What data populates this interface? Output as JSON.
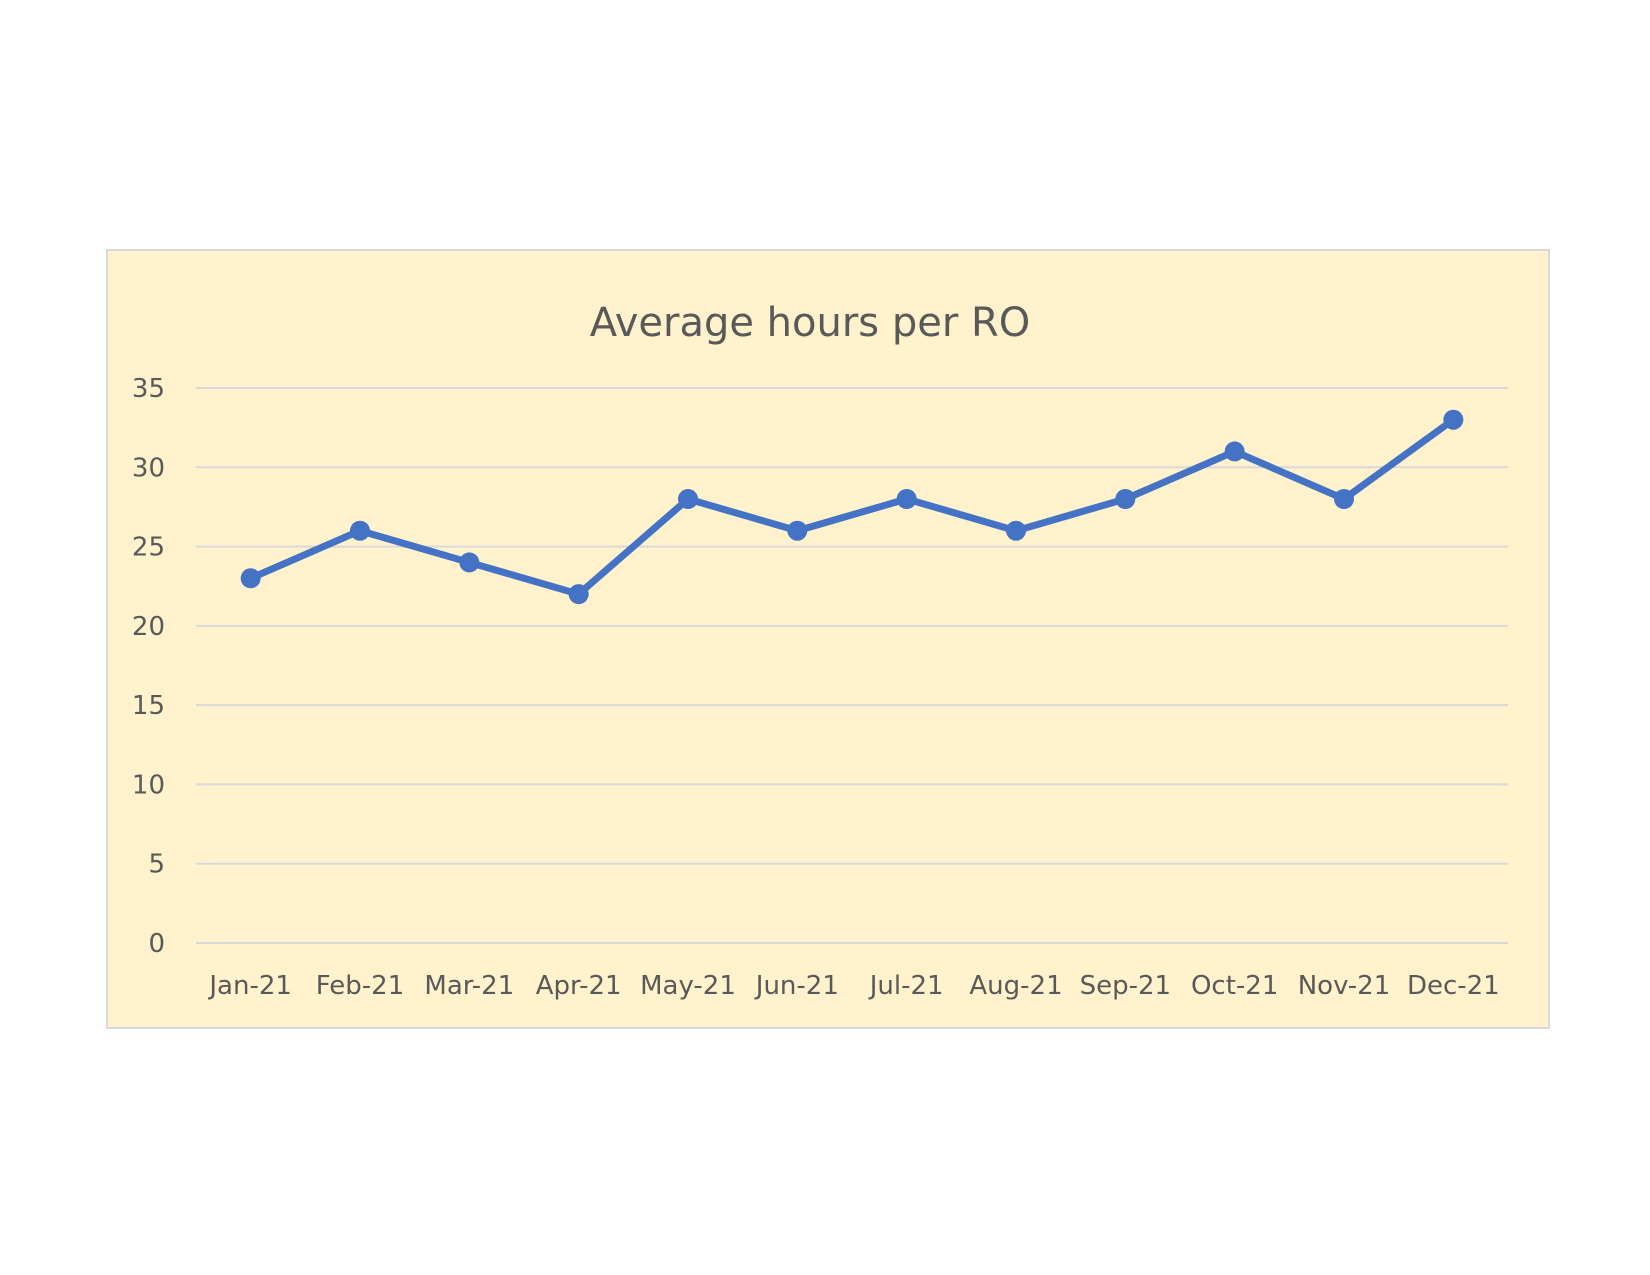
{
  "chart_data": {
    "type": "line",
    "title": "Average hours per RO",
    "xlabel": "",
    "ylabel": "",
    "categories": [
      "Jan-21",
      "Feb-21",
      "Mar-21",
      "Apr-21",
      "May-21",
      "Jun-21",
      "Jul-21",
      "Aug-21",
      "Sep-21",
      "Oct-21",
      "Nov-21",
      "Dec-21"
    ],
    "series": [
      {
        "values": [
          23,
          26,
          24,
          22,
          28,
          26,
          28,
          26,
          28,
          31,
          28,
          33
        ],
        "color": "#4472c4",
        "marker": "circle"
      }
    ],
    "ylim": [
      0,
      35
    ],
    "yticks": [
      0,
      5,
      10,
      15,
      20,
      25,
      30,
      35
    ],
    "grid": "horizontal",
    "legend": "none",
    "background_color": "#fff2cc",
    "border_color": "#d9d9d9",
    "gridline_color": "#d9d9d9",
    "text_color": "#595959"
  }
}
